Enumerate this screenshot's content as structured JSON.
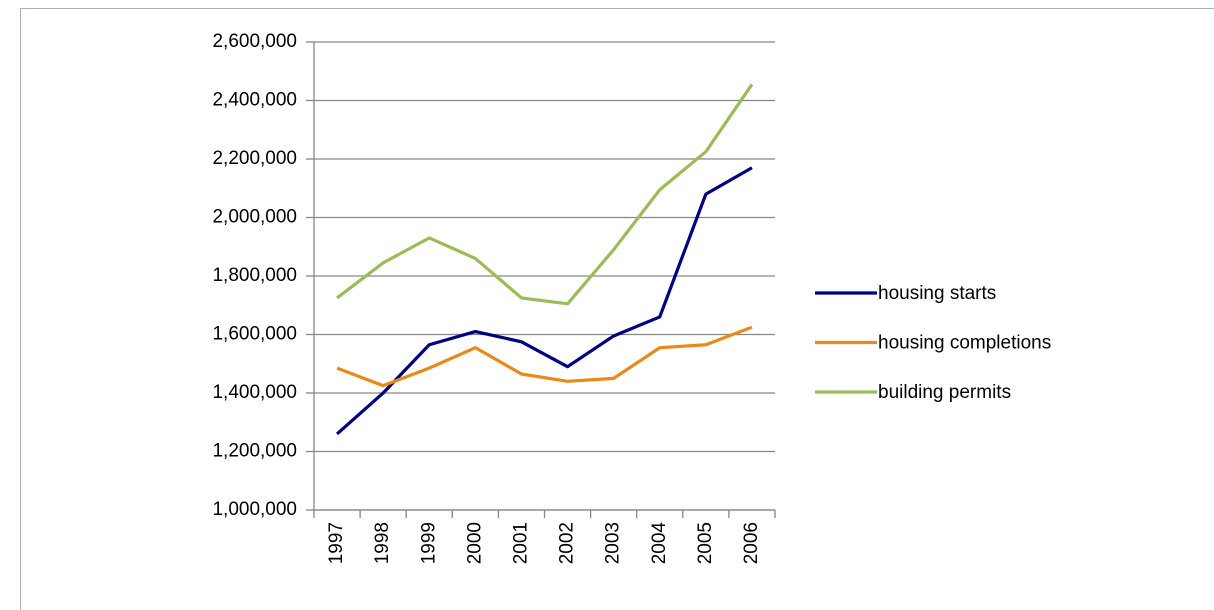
{
  "chart_data": {
    "type": "line",
    "categories": [
      "1997",
      "1998",
      "1999",
      "2000",
      "2001",
      "2002",
      "2003",
      "2004",
      "2005",
      "2006"
    ],
    "series": [
      {
        "name": "housing starts",
        "color": "#000080",
        "values": [
          1260000,
          1400000,
          1565000,
          1610000,
          1575000,
          1490000,
          1595000,
          1660000,
          2080000,
          2170000
        ]
      },
      {
        "name": "housing completions",
        "color": "#e8891a",
        "values": [
          1485000,
          1425000,
          1485000,
          1555000,
          1465000,
          1440000,
          1450000,
          1555000,
          1565000,
          1625000
        ]
      },
      {
        "name": "building permits",
        "color": "#9bbb59",
        "values": [
          1725000,
          1845000,
          1930000,
          1860000,
          1725000,
          1705000,
          1890000,
          2095000,
          2225000,
          2455000
        ]
      }
    ],
    "ylim": [
      1000000,
      2600000
    ],
    "yticks": [
      {
        "value": 1000000,
        "label": "1,000,000"
      },
      {
        "value": 1200000,
        "label": "1,200,000"
      },
      {
        "value": 1400000,
        "label": "1,400,000"
      },
      {
        "value": 1600000,
        "label": "1,600,000"
      },
      {
        "value": 1800000,
        "label": "1,800,000"
      },
      {
        "value": 2000000,
        "label": "2,000,000"
      },
      {
        "value": 2200000,
        "label": "2,200,000"
      },
      {
        "value": 2400000,
        "label": "2,400,000"
      },
      {
        "value": 2600000,
        "label": "2,600,000"
      }
    ],
    "grid": true,
    "legend": "right"
  }
}
